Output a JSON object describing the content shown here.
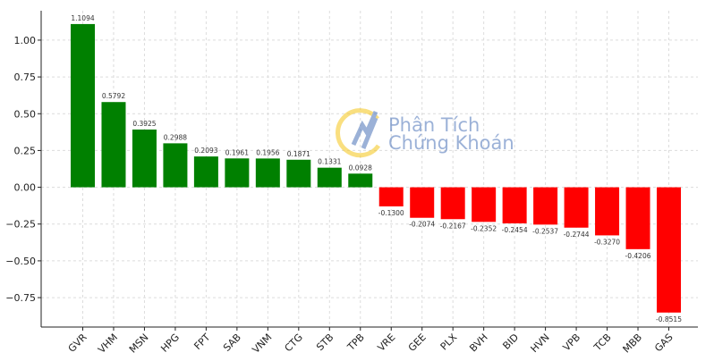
{
  "chart_data": {
    "type": "bar",
    "categories": [
      "GVR",
      "VHM",
      "MSN",
      "HPG",
      "FPT",
      "SAB",
      "VNM",
      "CTG",
      "STB",
      "TPB",
      "VRE",
      "GEE",
      "PLX",
      "BVH",
      "BID",
      "HVN",
      "VPB",
      "TCB",
      "MBB",
      "GAS"
    ],
    "values": [
      1.1094,
      0.5792,
      0.3925,
      0.2988,
      0.2093,
      0.1961,
      0.1956,
      0.1871,
      0.1331,
      0.0928,
      -0.13,
      -0.2074,
      -0.2167,
      -0.2352,
      -0.2454,
      -0.2537,
      -0.2744,
      -0.327,
      -0.4206,
      -0.8515
    ],
    "value_labels": [
      "1.1094",
      "0.5792",
      "0.3925",
      "0.2988",
      "0.2093",
      "0.1961",
      "0.1956",
      "0.1871",
      "0.1331",
      "0.0928",
      "-0.1300",
      "-0.2074",
      "-0.2167",
      "-0.2352",
      "-0.2454",
      "-0.2537",
      "-0.2744",
      "-0.3270",
      "-0.4206",
      "-0.8515"
    ],
    "title": "",
    "xlabel": "",
    "ylabel": "",
    "ylim": [
      -0.95,
      1.2
    ],
    "yticks": [
      1.0,
      0.75,
      0.5,
      0.25,
      0.0,
      -0.25,
      -0.5,
      -0.75
    ],
    "ytick_labels": [
      "1.00",
      "0.75",
      "0.50",
      "0.25",
      "0.00",
      "−0.25",
      "−0.50",
      "−0.75"
    ],
    "grid": true,
    "colors": {
      "positive": "#008000",
      "negative": "#ff0000"
    }
  },
  "watermark": {
    "line1": "Phân Tích",
    "line2": "Chứng Khoán",
    "color": "#4a72b8",
    "accent": "#f5c518"
  }
}
